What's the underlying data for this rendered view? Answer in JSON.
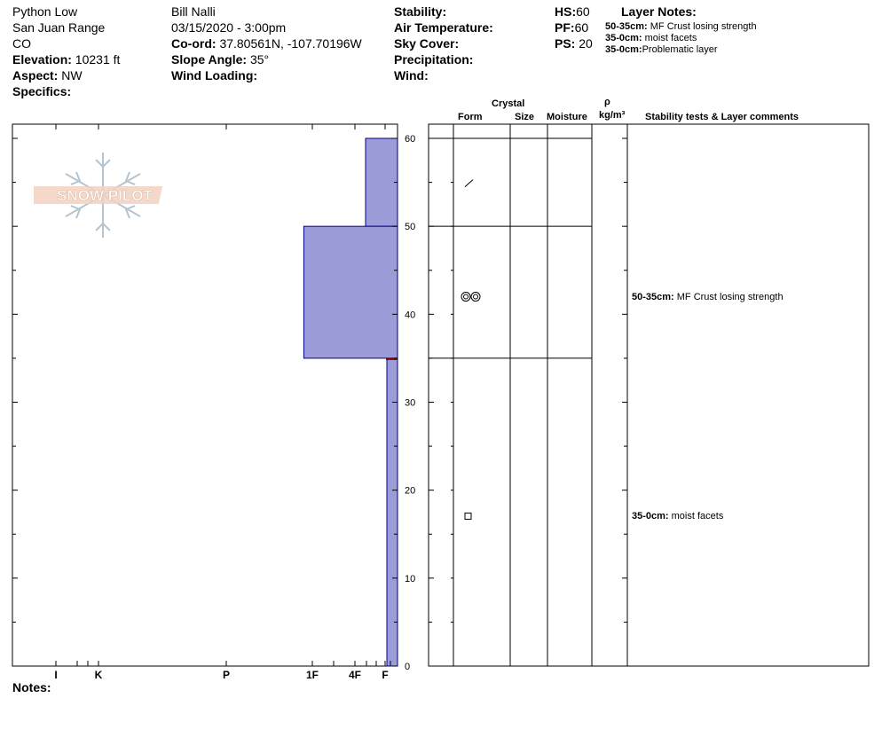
{
  "header": {
    "location": "Python Low",
    "range": "San Juan Range",
    "state": "CO",
    "elevation_label": "Elevation:",
    "elevation_value": "10231 ft",
    "aspect_label": "Aspect:",
    "aspect_value": "NW",
    "specifics_label": "Specifics:",
    "observer": "Bill Nalli",
    "datetime": "03/15/2020 - 3:00pm",
    "coord_label": "Co-ord:",
    "coord_value": "37.80561N, -107.70196W",
    "slope_label": "Slope Angle:",
    "slope_value": "35°",
    "wind_loading_label": "Wind Loading:",
    "stability_label": "Stability:",
    "air_temp_label": "Air Temperature:",
    "sky_label": "Sky Cover:",
    "precip_label": "Precipitation:",
    "wind_label": "Wind:",
    "hs_label": "HS:",
    "hs_value": "60",
    "pf_label": "PF:",
    "pf_value": "60",
    "ps_label": "PS:",
    "ps_value": "20",
    "layer_notes_title": "Layer Notes:",
    "layer_notes": [
      {
        "range": "50-35cm:",
        "text": "MF Crust losing strength"
      },
      {
        "range": "35-0cm:",
        "text": "moist facets"
      },
      {
        "range": "35-0cm:",
        "text": "Problematic layer"
      }
    ]
  },
  "logo_text": "SNOW PILOT",
  "table_header": {
    "crystal": "Crystal",
    "form": "Form",
    "size": "Size",
    "moisture": "Moisture",
    "rho": "ρ",
    "density_unit": "kg/m³",
    "comments": "Stability tests & Layer comments"
  },
  "layer_comments": [
    {
      "range": "50-35cm:",
      "text": "MF Crust losing strength",
      "depth": 42
    },
    {
      "range": "35-0cm:",
      "text": "moist facets",
      "depth": 17
    }
  ],
  "notes_label": "Notes:",
  "colors": {
    "hardness_fill": "#9c9cd8",
    "hardness_stroke": "#00008b",
    "problem_marker": "#8b0000"
  },
  "chart_data": {
    "type": "area",
    "xlabel": "",
    "ylabel": "",
    "ylim": [
      0,
      60
    ],
    "y_ticks": [
      0,
      10,
      20,
      30,
      40,
      50,
      60
    ],
    "hardness_scale": [
      "I",
      "K",
      "P",
      "1F",
      "4F",
      "F"
    ],
    "hardness_tick_values": {
      "I": 5,
      "K": 4,
      "P": 3,
      "1F": 2,
      "4F": 1,
      "F": 0
    },
    "x_direction": "reversed",
    "layers": [
      {
        "top": 60,
        "bottom": 50,
        "hardness": "4F",
        "hardness_value": 0.75
      },
      {
        "top": 50,
        "bottom": 35,
        "hardness": "1F",
        "hardness_value": 2.2
      },
      {
        "top": 35,
        "bottom": 0,
        "hardness": "F",
        "hardness_value": 0.25
      }
    ],
    "layer_boundaries": [
      60,
      50,
      35
    ],
    "problem_layer_depth": 35,
    "crystal_forms": [
      {
        "depth": 55,
        "form": "precipitation particles (decomposing)"
      },
      {
        "depth": 42,
        "form": "melt forms (clustered grains)"
      },
      {
        "depth": 17,
        "form": "faceted crystals"
      }
    ]
  }
}
